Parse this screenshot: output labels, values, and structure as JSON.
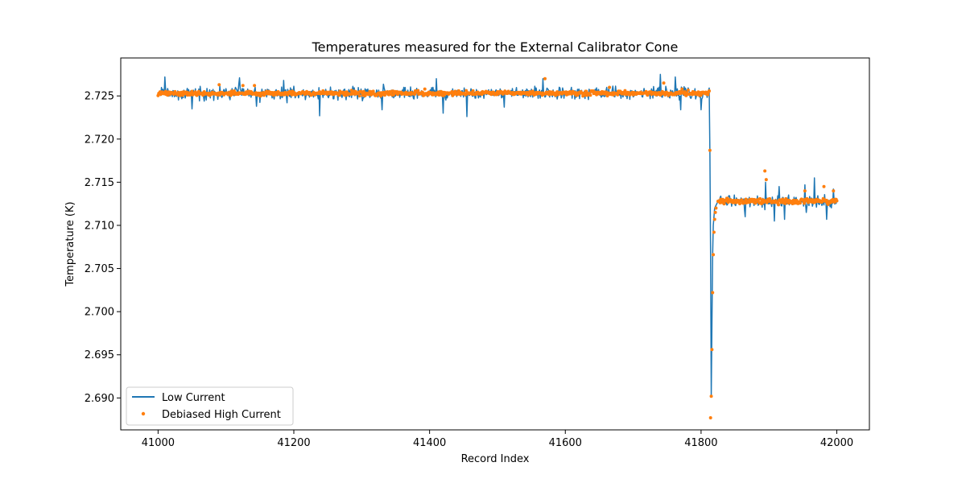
{
  "chart_data": {
    "type": "line",
    "title": "Temperatures measured for the External Calibrator Cone",
    "xlabel": "Record Index",
    "ylabel": "Temperature (K)",
    "xlim": [
      40945,
      42048
    ],
    "ylim": [
      2.6863,
      2.7294
    ],
    "x_ticks": [
      41000,
      41200,
      41400,
      41600,
      41800,
      42000
    ],
    "y_ticks": [
      2.69,
      2.695,
      2.7,
      2.705,
      2.71,
      2.715,
      2.72,
      2.725
    ],
    "x_tick_labels": [
      "41000",
      "41200",
      "41400",
      "41600",
      "41800",
      "42000"
    ],
    "y_tick_labels": [
      "2.690",
      "2.695",
      "2.700",
      "2.705",
      "2.710",
      "2.715",
      "2.720",
      "2.725"
    ],
    "legend_position": "lower-left",
    "series": [
      {
        "name": "Low Current",
        "style": "line",
        "color": "#1f77b4",
        "segments": [
          {
            "x_start": 41000,
            "x_end": 41812,
            "baseline": 2.7253,
            "noise": 0.0007,
            "spikes_up": [
              [
                41010,
                2.7272
              ],
              [
                41120,
                2.7271
              ],
              [
                41185,
                2.7268
              ],
              [
                41410,
                2.727
              ],
              [
                41567,
                2.727
              ],
              [
                41740,
                2.7275
              ],
              [
                41762,
                2.7272
              ]
            ],
            "spikes_down": [
              [
                41050,
                2.7235
              ],
              [
                41145,
                2.7238
              ],
              [
                41238,
                2.7227
              ],
              [
                41330,
                2.7234
              ],
              [
                41420,
                2.723
              ],
              [
                41455,
                2.7226
              ],
              [
                41510,
                2.7237
              ],
              [
                41770,
                2.7234
              ],
              [
                41800,
                2.7234
              ]
            ]
          },
          {
            "x_start": 41825,
            "x_end": 42000,
            "baseline": 2.7128,
            "noise": 0.0007,
            "spikes_up": [
              [
                41895,
                2.715
              ],
              [
                41915,
                2.7145
              ],
              [
                41953,
                2.7147
              ],
              [
                41967,
                2.7155
              ],
              [
                41995,
                2.7142
              ]
            ],
            "spikes_down": [
              [
                41865,
                2.711
              ],
              [
                41908,
                2.7105
              ],
              [
                41923,
                2.7107
              ],
              [
                41955,
                2.7115
              ],
              [
                41985,
                2.7107
              ]
            ]
          }
        ],
        "drop_points": [
          [
            41812,
            2.7255
          ],
          [
            41813,
            2.7185
          ],
          [
            41814,
            2.707
          ],
          [
            41815,
            2.6902
          ],
          [
            41816,
            2.6985
          ],
          [
            41817,
            2.7065
          ],
          [
            41818,
            2.71
          ],
          [
            41820,
            2.712
          ],
          [
            41825,
            2.7128
          ]
        ]
      },
      {
        "name": "Debiased High Current",
        "style": "points",
        "color": "#ff7f0e",
        "segments": [
          {
            "x_start": 41000,
            "x_end": 41812,
            "baseline": 2.7253,
            "noise": 0.00025,
            "outliers": [
              [
                41090,
                2.7263
              ],
              [
                41125,
                2.7262
              ],
              [
                41142,
                2.7262
              ],
              [
                41393,
                2.7258
              ],
              [
                41570,
                2.727
              ],
              [
                41665,
                2.726
              ],
              [
                41745,
                2.7265
              ],
              [
                41772,
                2.7258
              ]
            ]
          },
          {
            "x_start": 41825,
            "x_end": 42000,
            "baseline": 2.7128,
            "noise": 0.0003,
            "outliers": [
              [
                41894,
                2.7163
              ],
              [
                41896,
                2.7153
              ],
              [
                41953,
                2.714
              ],
              [
                41981,
                2.7145
              ],
              [
                41995,
                2.714
              ]
            ]
          }
        ],
        "drop_points": [
          [
            41813,
            2.7187
          ],
          [
            41814,
            2.6877
          ],
          [
            41815,
            2.6902
          ],
          [
            41816,
            2.6956
          ],
          [
            41817,
            2.7022
          ],
          [
            41818,
            2.7066
          ],
          [
            41819,
            2.7092
          ],
          [
            41820,
            2.7107
          ],
          [
            41821,
            2.7115
          ],
          [
            41822,
            2.712
          ]
        ]
      }
    ]
  }
}
